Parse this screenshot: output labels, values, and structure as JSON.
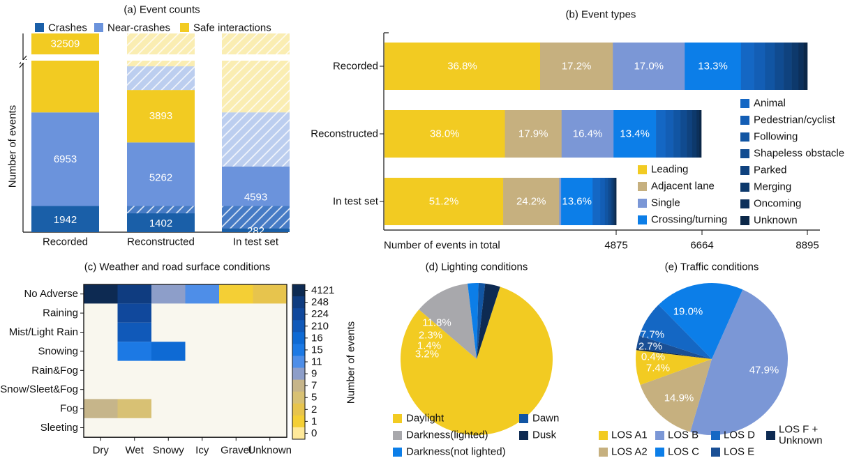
{
  "colors": {
    "crashes": "#1a5fa8",
    "near_crashes": "#6b93dc",
    "safe": "#f2cb22",
    "type_palette": {
      "Leading": "#f2cb22",
      "Adjacent lane": "#c6b07f",
      "Single": "#7b97d6",
      "Crossing/turning": "#0c7ee8",
      "Animal": "#1467c4",
      "Pedestrian/cyclist": "#135eb5",
      "Following": "#1155a3",
      "Shapeless obstacle": "#104b90",
      "Parked": "#0f427e",
      "Merging": "#0d396c",
      "Oncoming": "#0c305b",
      "Unknown": "#0b2748"
    },
    "lighting": {
      "Daylight": "#f2cb22",
      "Darkness(lighted)": "#a8a8ac",
      "Darkness(not lighted)": "#0c7ee8",
      "Dawn": "#1155a3",
      "Dusk": "#0d2a52"
    },
    "traffic": {
      "LOS A1": "#f2cb22",
      "LOS A2": "#c6b07f",
      "LOS B": "#7b97d6",
      "LOS C": "#0c7ee8",
      "LOS D": "#1467c4",
      "LOS E": "#1a4f95",
      "LOS F + Unknown": "#0d2a52"
    },
    "heat_scale": [
      "#f9f7ee",
      "#ffe99a",
      "#f4cf35",
      "#e7c44d",
      "#d8c174",
      "#c6b58a",
      "#8d9ec9",
      "#4e8ee8",
      "#1c79e4",
      "#0e6ad4",
      "#1059b9",
      "#10489c",
      "#0f3c80",
      "#0d2a52"
    ]
  },
  "chart_data": [
    {
      "id": "a",
      "type": "bar",
      "title": "(a) Event counts",
      "ylabel": "Number of events",
      "categories": [
        "Recorded",
        "Reconstructed",
        "In test set"
      ],
      "legend": [
        "Crashes",
        "Near-crashes",
        "Safe interactions"
      ],
      "legend_position": "top",
      "axis_break": true,
      "series": [
        {
          "name": "Crashes",
          "values": [
            1942,
            1402,
            282
          ],
          "labels": [
            "1942",
            "1402",
            "282"
          ]
        },
        {
          "name": "Near-crashes",
          "values": [
            6953,
            5262,
            4593
          ],
          "labels": [
            "6953",
            "5262",
            "4593"
          ]
        },
        {
          "name": "Safe interactions",
          "values": [
            32509,
            3893,
            0
          ],
          "labels": [
            "32509",
            "3893",
            ""
          ]
        }
      ],
      "hatched_reference": "Recorded"
    },
    {
      "id": "b",
      "type": "bar",
      "orientation": "horizontal",
      "stacked": true,
      "title": "(b) Event types",
      "xlabel": "Number of events in total",
      "xticks": [
        "4875",
        "6664",
        "8895"
      ],
      "categories": [
        "Recorded",
        "Reconstructed",
        "In test set"
      ],
      "totals": [
        8895,
        6664,
        4875
      ],
      "types": [
        "Leading",
        "Adjacent lane",
        "Single",
        "Crossing/turning",
        "Animal",
        "Pedestrian/cyclist",
        "Following",
        "Shapeless obstacle",
        "Parked",
        "Merging",
        "Oncoming",
        "Unknown"
      ],
      "percentages": [
        [
          36.8,
          17.2,
          17.0,
          13.3,
          3.1,
          2.6,
          2.3,
          2.1,
          1.9,
          1.6,
          1.2,
          0.9
        ],
        [
          38.0,
          17.9,
          16.4,
          13.4,
          3.0,
          2.5,
          2.2,
          2.0,
          1.7,
          1.4,
          0.9,
          0.6
        ],
        [
          51.2,
          24.2,
          0.8,
          13.6,
          3.3,
          2.0,
          1.4,
          1.1,
          0.8,
          0.7,
          0.5,
          0.4
        ]
      ],
      "shown_labels": [
        [
          "36.8%",
          "17.2%",
          "17.0%",
          "13.3%"
        ],
        [
          "38.0%",
          "17.9%",
          "16.4%",
          "13.4%"
        ],
        [
          "51.2%",
          "24.2%",
          "",
          "13.6%"
        ]
      ],
      "legend_left": [
        "Leading",
        "Adjacent lane",
        "Single",
        "Crossing/turning"
      ],
      "legend_right": [
        "Animal",
        "Pedestrian/cyclist",
        "Following",
        "Shapeless obstacle",
        "Parked",
        "Merging",
        "Oncoming",
        "Unknown"
      ]
    },
    {
      "id": "c",
      "type": "heatmap",
      "title": "(c) Weather and road surface conditions",
      "xlabels": [
        "Dry",
        "Wet",
        "Snowy",
        "Icy",
        "Gravel",
        "Unknown"
      ],
      "ylabels": [
        "No Adverse",
        "Raining",
        "Mist/Light Rain",
        "Snowing",
        "Rain&Fog",
        "Snow/Sleet&Fog",
        "Fog",
        "Sleeting"
      ],
      "colorbar_label": "Number of events",
      "colorbar_ticks": [
        "4121",
        "248",
        "224",
        "210",
        "16",
        "15",
        "11",
        "9",
        "7",
        "5",
        "2",
        "1",
        "0"
      ],
      "matrix": [
        [
          4121,
          248,
          9,
          11,
          1,
          2
        ],
        [
          0,
          224,
          0,
          0,
          0,
          0
        ],
        [
          0,
          210,
          0,
          0,
          0,
          0
        ],
        [
          0,
          15,
          16,
          0,
          0,
          0
        ],
        [
          0,
          0,
          0,
          0,
          0,
          0
        ],
        [
          0,
          0,
          0,
          0,
          0,
          0
        ],
        [
          7,
          5,
          0,
          0,
          0,
          0
        ],
        [
          0,
          0,
          0,
          0,
          0,
          0
        ]
      ]
    },
    {
      "id": "d",
      "type": "pie",
      "title": "(d) Lighting conditions",
      "slices": [
        {
          "name": "Daylight",
          "value": 81.3,
          "label": "81.3%"
        },
        {
          "name": "Darkness(lighted)",
          "value": 11.8,
          "label": "11.8%"
        },
        {
          "name": "Darkness(not lighted)",
          "value": 2.3,
          "label": "2.3%"
        },
        {
          "name": "Dawn",
          "value": 1.4,
          "label": "1.4%"
        },
        {
          "name": "Dusk",
          "value": 3.2,
          "label": "3.2%"
        }
      ],
      "legend": [
        "Daylight",
        "Dawn",
        "Darkness(lighted)",
        "Dusk",
        "Darkness(not lighted)"
      ]
    },
    {
      "id": "e",
      "type": "pie",
      "title": "(e) Traffic conditions",
      "slices": [
        {
          "name": "LOS B",
          "value": 47.9,
          "label": "47.9%"
        },
        {
          "name": "LOS A2",
          "value": 14.9,
          "label": "14.9%"
        },
        {
          "name": "LOS A1",
          "value": 7.4,
          "label": "7.4%"
        },
        {
          "name": "LOS F + Unknown",
          "value": 0.4,
          "label": "0.4%"
        },
        {
          "name": "LOS E",
          "value": 2.7,
          "label": "2.7%"
        },
        {
          "name": "LOS D",
          "value": 7.7,
          "label": "7.7%"
        },
        {
          "name": "LOS C",
          "value": 19.0,
          "label": "19.0%"
        }
      ],
      "legend": [
        "LOS A1",
        "LOS B",
        "LOS D",
        "LOS F + Unknown",
        "LOS A2",
        "LOS C",
        "LOS E"
      ]
    }
  ]
}
